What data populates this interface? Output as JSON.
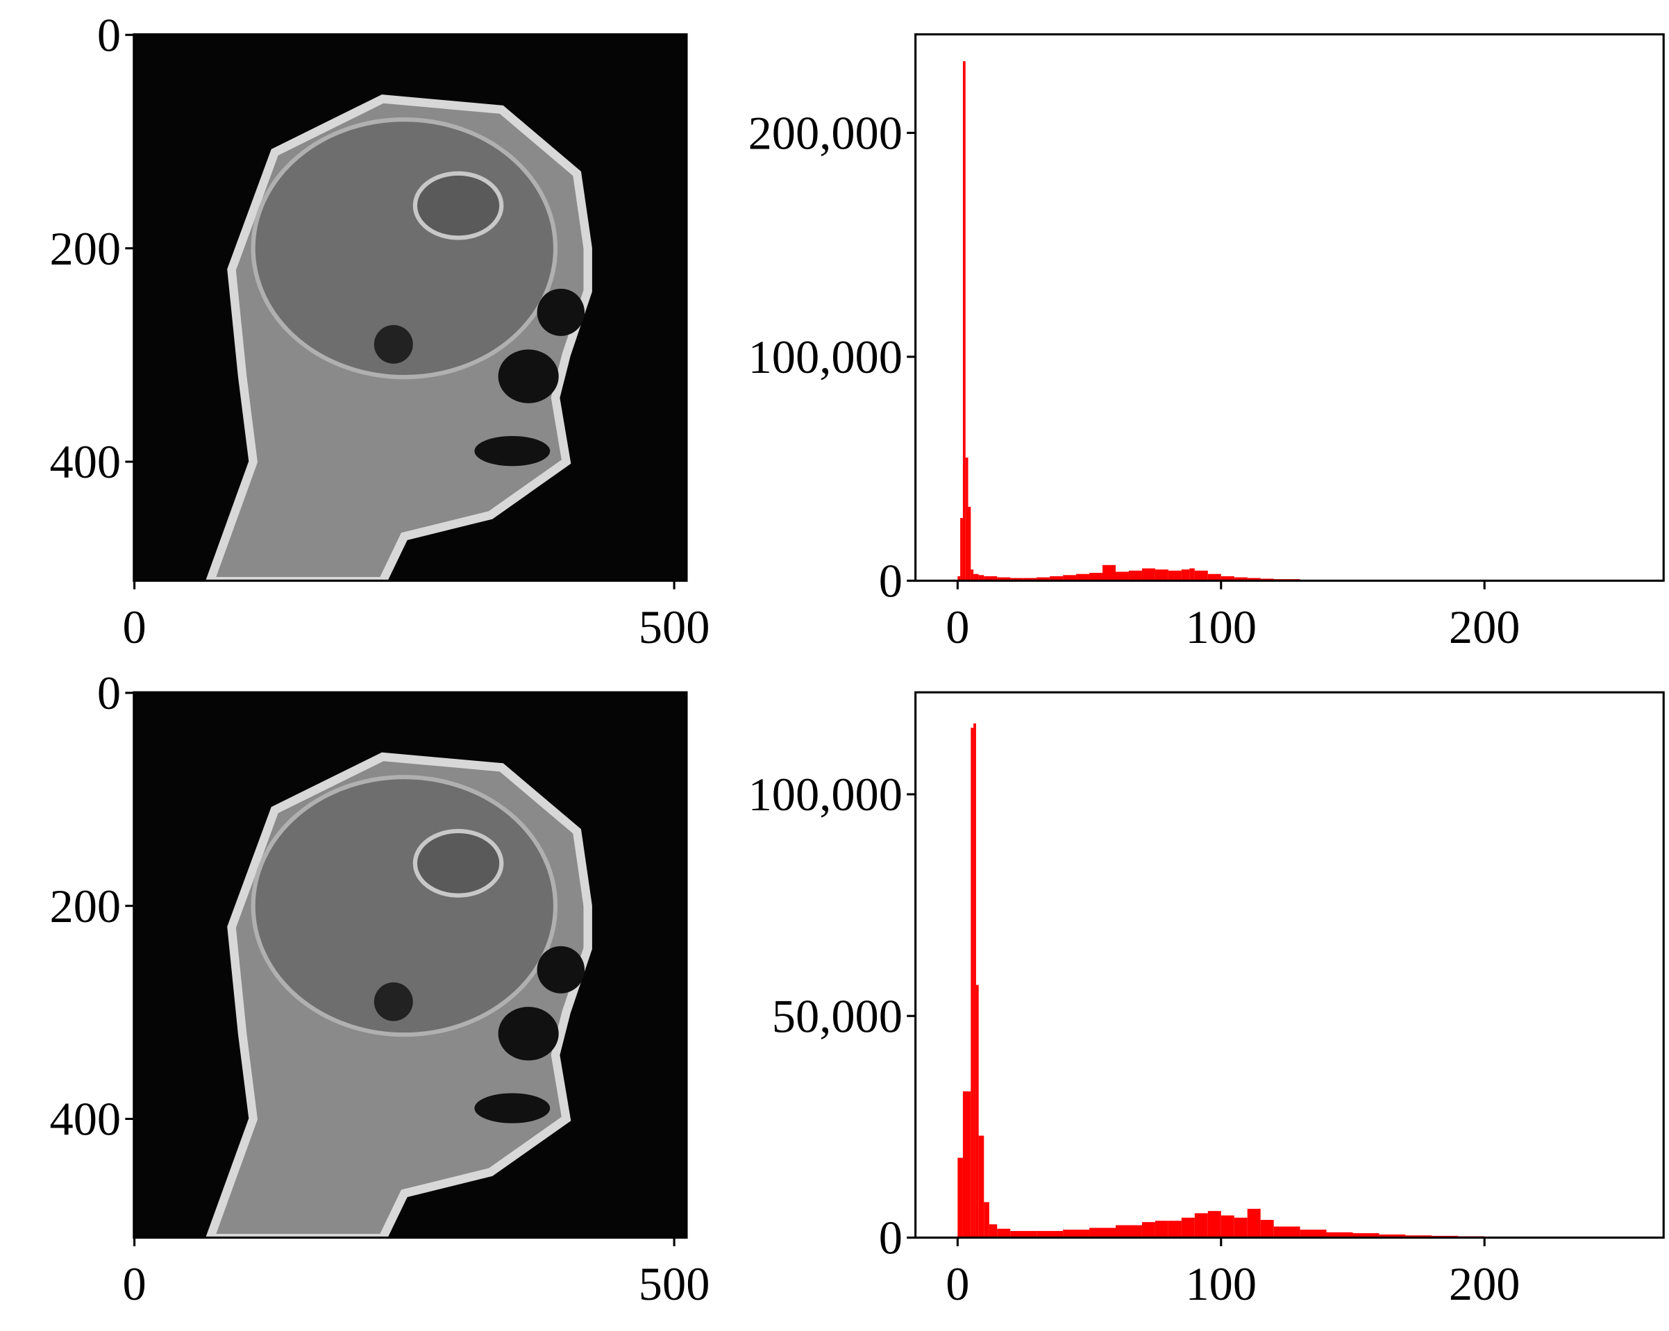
{
  "chart_data": [
    {
      "type": "image",
      "xlim": [
        -0.5,
        511.5
      ],
      "ylim": [
        511.5,
        -0.5
      ],
      "xticks": [
        0,
        500
      ],
      "yticks": [
        0,
        200,
        400
      ]
    },
    {
      "type": "bar",
      "color": "#ff0000",
      "xlim": [
        -16,
        268
      ],
      "ylim": [
        0,
        244000
      ],
      "xticks": [
        0,
        100,
        200
      ],
      "yticks": [
        0,
        {
          "value": 100000,
          "label": "100,000"
        },
        {
          "value": 200000,
          "label": "200,000"
        }
      ],
      "x": [
        0,
        1,
        2,
        3,
        4,
        5,
        6,
        8,
        10,
        15,
        20,
        25,
        30,
        35,
        40,
        45,
        50,
        55,
        60,
        65,
        70,
        75,
        80,
        85,
        88,
        90,
        95,
        100,
        105,
        110,
        115,
        120,
        130,
        140,
        150
      ],
      "values": [
        2000,
        28000,
        232000,
        55000,
        33000,
        5000,
        3000,
        2500,
        2000,
        1500,
        1200,
        1200,
        1500,
        2000,
        2500,
        3000,
        3500,
        7000,
        4000,
        4500,
        5500,
        5000,
        4500,
        5000,
        5500,
        4500,
        3000,
        2000,
        1500,
        1200,
        900,
        700,
        400,
        300,
        200
      ]
    },
    {
      "type": "image",
      "xlim": [
        -0.5,
        511.5
      ],
      "ylim": [
        511.5,
        -0.5
      ],
      "xticks": [
        0,
        500
      ],
      "yticks": [
        0,
        200,
        400
      ]
    },
    {
      "type": "bar",
      "color": "#ff0000",
      "xlim": [
        -16,
        268
      ],
      "ylim": [
        0,
        123000
      ],
      "xticks": [
        0,
        100,
        200
      ],
      "yticks": [
        0,
        {
          "value": 50000,
          "label": "50,000"
        },
        {
          "value": 100000,
          "label": "100,000"
        }
      ],
      "x": [
        0,
        2,
        4,
        5,
        6,
        7,
        8,
        10,
        12,
        15,
        20,
        30,
        40,
        50,
        60,
        70,
        75,
        80,
        85,
        90,
        95,
        100,
        105,
        110,
        115,
        120,
        130,
        140,
        150,
        160,
        170,
        180,
        190,
        200
      ],
      "values": [
        18000,
        33000,
        33000,
        115000,
        116000,
        57000,
        23000,
        8000,
        3000,
        2000,
        1500,
        1500,
        1800,
        2200,
        2800,
        3500,
        3800,
        3800,
        4500,
        5500,
        6000,
        5000,
        4500,
        6500,
        4000,
        2500,
        1800,
        1200,
        1000,
        700,
        500,
        400,
        300,
        200
      ]
    }
  ]
}
